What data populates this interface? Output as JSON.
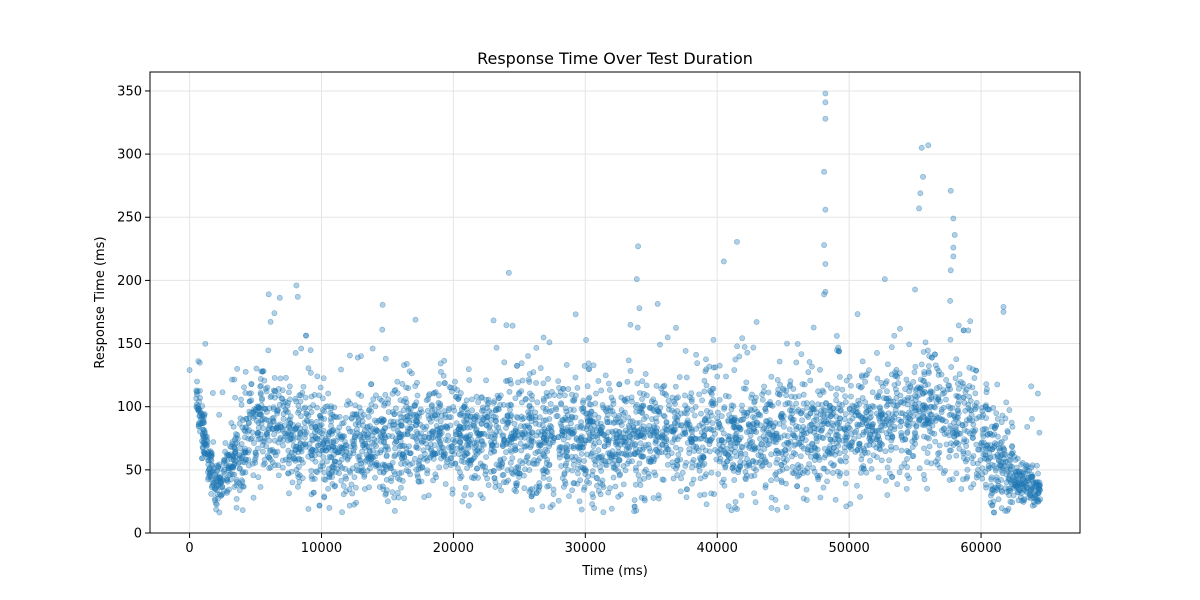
{
  "chart_data": {
    "type": "scatter",
    "title": "Response Time Over Test Duration",
    "xlabel": "Time (ms)",
    "ylabel": "Response Time (ms)",
    "xlim": [
      -3000,
      67500
    ],
    "ylim": [
      0,
      365
    ],
    "xticks": [
      0,
      10000,
      20000,
      30000,
      40000,
      50000,
      60000
    ],
    "yticks": [
      0,
      50,
      100,
      150,
      200,
      250,
      300,
      350
    ],
    "grid": true,
    "colors": {
      "points": "#1f77b4",
      "grid": "#e5e5e5",
      "axes": "#000000"
    },
    "marker_opacity": 0.35,
    "point_count_estimate": 4200,
    "series": [
      {
        "values_note": "approximate point cloud; baseline trend (x, y mean)",
        "trend": [
          [
            0,
            130
          ],
          [
            2000,
            35
          ],
          [
            5000,
            85
          ],
          [
            10000,
            70
          ],
          [
            20000,
            75
          ],
          [
            30000,
            72
          ],
          [
            40000,
            76
          ],
          [
            50000,
            80
          ],
          [
            57000,
            95
          ],
          [
            60000,
            70
          ],
          [
            63000,
            40
          ],
          [
            64500,
            33
          ]
        ],
        "outliers": [
          [
            48200,
            348
          ],
          [
            48200,
            341
          ],
          [
            48200,
            328
          ],
          [
            48100,
            286
          ],
          [
            48200,
            256
          ],
          [
            48100,
            228
          ],
          [
            48200,
            213
          ],
          [
            48200,
            191
          ],
          [
            48100,
            189
          ],
          [
            56000,
            307
          ],
          [
            55500,
            305
          ],
          [
            55400,
            269
          ],
          [
            55600,
            282
          ],
          [
            55300,
            257
          ],
          [
            57700,
            271
          ],
          [
            57900,
            249
          ],
          [
            58000,
            236
          ],
          [
            57900,
            226
          ],
          [
            57900,
            219
          ],
          [
            57700,
            208
          ],
          [
            34000,
            227
          ],
          [
            33900,
            201
          ],
          [
            34100,
            178
          ],
          [
            24200,
            206
          ],
          [
            40500,
            215
          ],
          [
            8100,
            196
          ],
          [
            8200,
            187
          ],
          [
            6000,
            189
          ],
          [
            52700,
            201
          ],
          [
            61700,
            179
          ],
          [
            61700,
            175
          ]
        ]
      }
    ]
  }
}
